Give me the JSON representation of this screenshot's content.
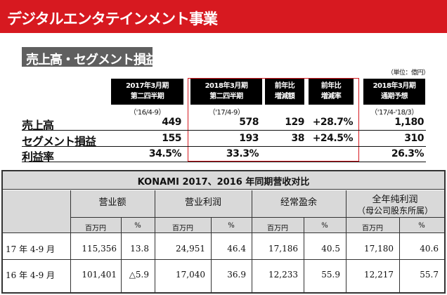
{
  "banner": {
    "title": "デジタルエンタテインメント事業"
  },
  "section": {
    "title": "売上高・セグメント損益"
  },
  "unit": "（単位：億円）",
  "columns": [
    {
      "line1": "2017年3月期",
      "line2": "第二四半期",
      "period": "（'16/4-9）"
    },
    {
      "line1": "2018年3月期",
      "line2": "第二四半期",
      "period": "（'17/4-9）"
    },
    {
      "line1": "前年比",
      "line2": "増減額",
      "period": ""
    },
    {
      "line1": "前年比",
      "line2": "増減率",
      "period": ""
    },
    {
      "line1": "2018年3月期",
      "line2": "通期予想",
      "period": "（'17/4-'18/3）"
    }
  ],
  "rows": [
    {
      "label": "売上高",
      "values": [
        "449",
        "578",
        "129",
        "+28.7%",
        "1,180"
      ]
    },
    {
      "label": "セグメント損益",
      "values": [
        "155",
        "193",
        "38",
        "+24.5%",
        "310"
      ]
    },
    {
      "label": "利益率",
      "values": [
        "34.5%",
        "33.3%",
        "",
        "",
        "26.3%"
      ]
    }
  ],
  "konami": {
    "title": "KONAMI 2017、2016 年同期营收对比",
    "groups": [
      {
        "label": "营业额",
        "sub": ""
      },
      {
        "label": "营业利润",
        "sub": ""
      },
      {
        "label": "经常盈余",
        "sub": ""
      },
      {
        "label": "全年纯利润",
        "sub": "（母公司股东所属）"
      }
    ],
    "subheaders": [
      "百万円",
      "%",
      "百万円",
      "%",
      "百万円",
      "%",
      "百万円",
      "%"
    ],
    "rows": [
      {
        "label": "17 年 4-9 月",
        "values": [
          "115,356",
          "13.8",
          "24,951",
          "46.4",
          "17,186",
          "40.5",
          "17,180",
          "40.6"
        ]
      },
      {
        "label": "16 年 4-9 月",
        "values": [
          "101,401",
          "△5.9",
          "17,040",
          "36.9",
          "12,233",
          "55.9",
          "12,217",
          "55.7"
        ]
      }
    ]
  },
  "colors": {
    "accent_red": "#d71920",
    "header_black": "#000000",
    "tag_grey": "#5f5f5f",
    "table_grey": "#d9d9d9"
  }
}
